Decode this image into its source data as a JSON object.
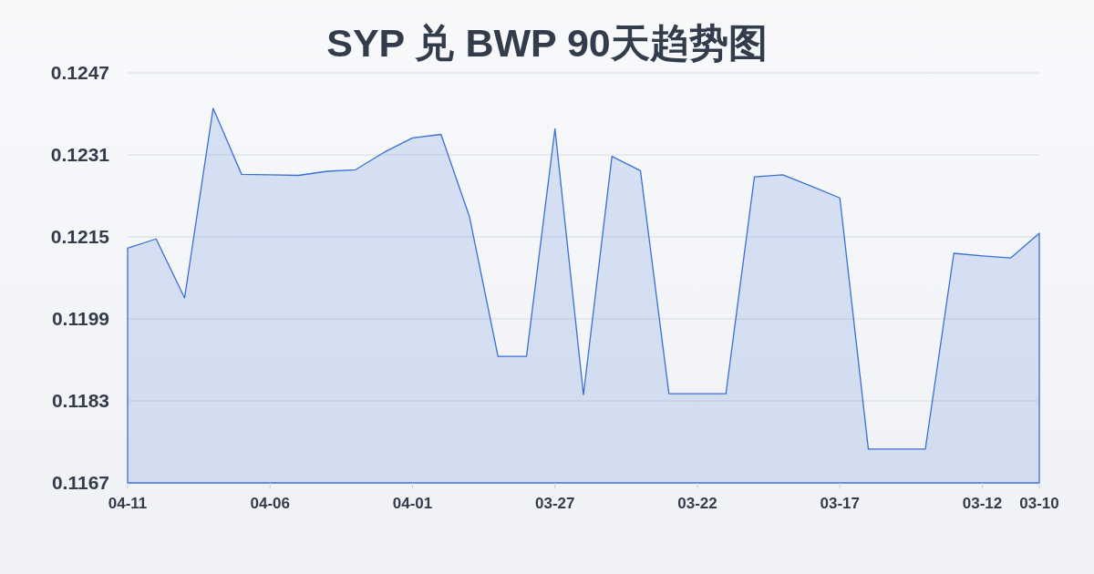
{
  "chart_data": {
    "type": "area",
    "title": "SYP 兑 BWP 90天趋势图",
    "categories": [
      "04-11",
      null,
      null,
      null,
      null,
      "04-06",
      null,
      null,
      null,
      null,
      "04-01",
      null,
      null,
      null,
      null,
      "03-27",
      null,
      null,
      null,
      null,
      "03-22",
      null,
      null,
      null,
      null,
      "03-17",
      null,
      null,
      null,
      null,
      "03-12",
      null,
      "03-10"
    ],
    "values": [
      0.12128,
      0.12146,
      0.12031,
      0.12401,
      0.12272,
      0.12271,
      0.1227,
      0.12278,
      0.12281,
      0.12315,
      0.12343,
      0.1235,
      0.12189,
      0.11917,
      0.11917,
      0.12361,
      0.11842,
      0.12307,
      0.12279,
      0.11844,
      0.11844,
      0.11844,
      0.12267,
      0.12271,
      0.12249,
      0.12226,
      0.11736,
      0.11736,
      0.11736,
      0.12118,
      0.12113,
      0.12109,
      0.12157
    ],
    "color": "#3a6fd6",
    "ylim": [
      0.1167,
      0.1247
    ],
    "yticks": [
      0.1167,
      0.1183,
      0.1199,
      0.1215,
      0.1231,
      0.1247
    ],
    "grid": "y"
  }
}
